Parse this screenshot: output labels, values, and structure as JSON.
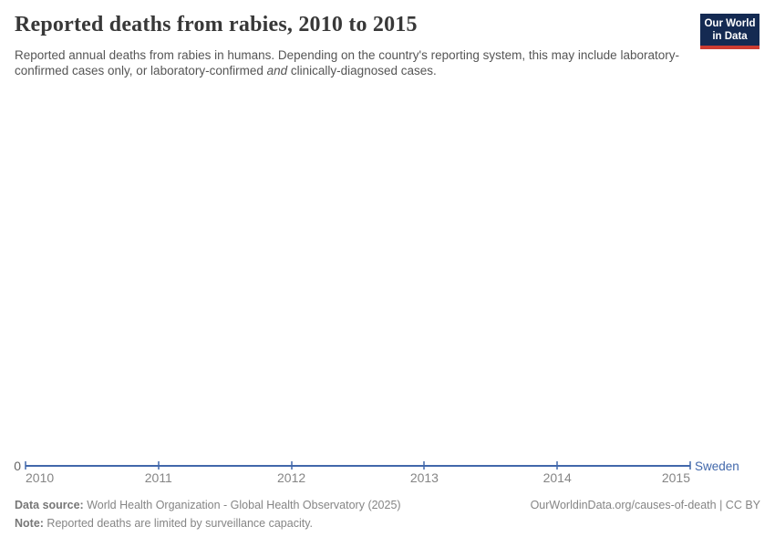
{
  "header": {
    "title": "Reported deaths from rabies, 2010 to 2015",
    "subtitle_part1": "Reported annual deaths from rabies in humans. Depending on the country's reporting system, this may include laboratory-confirmed cases only, or laboratory-confirmed ",
    "subtitle_italic": "and",
    "subtitle_part2": " clinically-diagnosed cases.",
    "logo": {
      "line1": "Our World",
      "line2": "in Data",
      "bg_color": "#142a52",
      "stripe_color": "#cd3c31"
    }
  },
  "chart_data": {
    "type": "line",
    "title": "Reported deaths from rabies, 2010 to 2015",
    "x": [
      2010,
      2011,
      2012,
      2013,
      2014,
      2015
    ],
    "series": [
      {
        "name": "Sweden",
        "color": "#4268ab",
        "values": [
          0,
          0,
          0,
          0,
          0,
          0
        ]
      }
    ],
    "xlabel": "",
    "ylabel": "",
    "ylim": [
      0,
      null
    ],
    "y_ticks": [
      0
    ],
    "grid": false,
    "legend": "line-end-label"
  },
  "axis": {
    "zero_label": "0"
  },
  "footer": {
    "datasource_label": "Data source:",
    "datasource_text": " World Health Organization - Global Health Observatory (2025)",
    "note_label": "Note:",
    "note_text": " Reported deaths are limited by surveillance capacity.",
    "rights": "OurWorldinData.org/causes-of-death | CC BY"
  }
}
